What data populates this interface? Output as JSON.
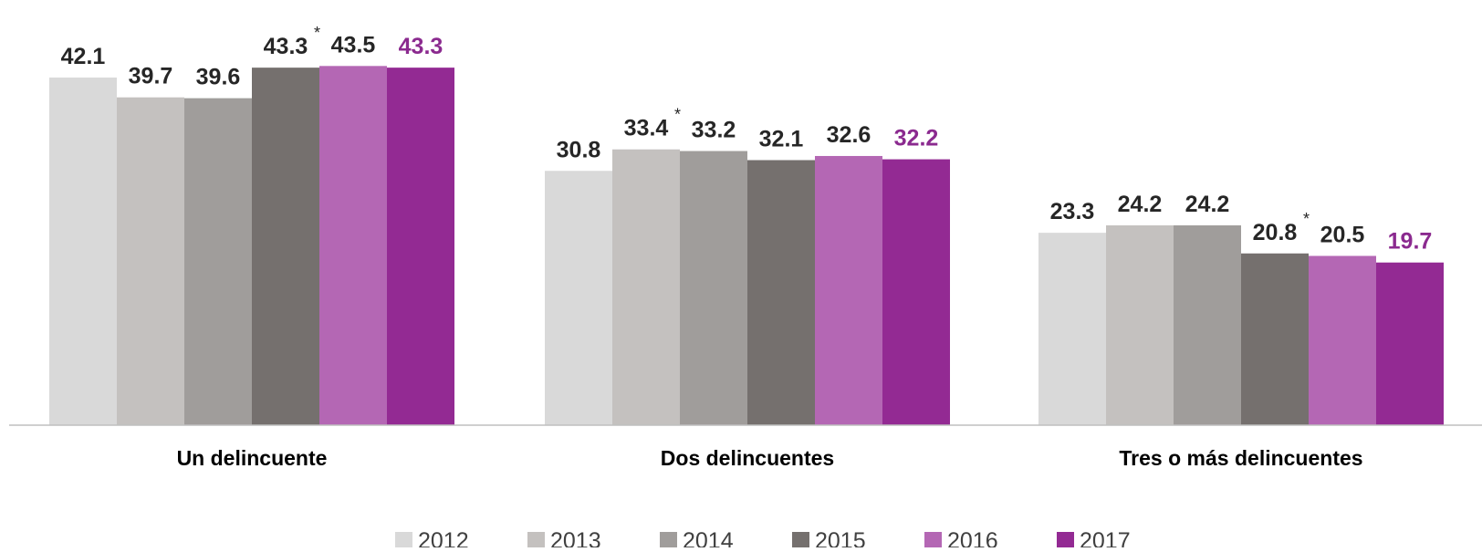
{
  "chart_data": {
    "type": "bar",
    "categories": [
      "Un delincuente",
      "Dos delincuentes",
      "Tres o más delincuentes"
    ],
    "series": [
      {
        "name": "2012",
        "color": "#D9D9D9",
        "values": [
          42.1,
          30.8,
          23.3
        ],
        "labels": [
          "42.1",
          "30.8",
          "23.3"
        ]
      },
      {
        "name": "2013",
        "color": "#C4C1BF",
        "values": [
          39.7,
          33.4,
          24.2
        ],
        "labels": [
          "39.7",
          "33.4",
          "24.2"
        ]
      },
      {
        "name": "2014",
        "color": "#A09D9B",
        "values": [
          39.6,
          33.2,
          24.2
        ],
        "labels": [
          "39.6",
          "33.2",
          "24.2"
        ]
      },
      {
        "name": "2015",
        "color": "#75706E",
        "values": [
          43.3,
          32.1,
          20.8
        ],
        "labels": [
          "43.3",
          "32.1",
          "20.8"
        ]
      },
      {
        "name": "2016",
        "color": "#B467B4",
        "values": [
          43.5,
          32.6,
          20.5
        ],
        "labels": [
          "43.5",
          "32.6",
          "20.5"
        ]
      },
      {
        "name": "2017",
        "color": "#932A93",
        "values": [
          43.3,
          32.2,
          19.7
        ],
        "labels": [
          "43.3",
          "32.2",
          "19.7"
        ]
      }
    ],
    "significance_marks": [
      {
        "category": 0,
        "series": 3,
        "mark": "*"
      },
      {
        "category": 1,
        "series": 1,
        "mark": "*"
      },
      {
        "category": 2,
        "series": 3,
        "mark": "*"
      }
    ],
    "highlight_series": "2017",
    "highlight_label_color": "#8B2A8F",
    "title": "",
    "xlabel": "",
    "ylabel": "",
    "ylim": [
      0,
      50
    ],
    "grid": false,
    "legend_position": "bottom"
  }
}
